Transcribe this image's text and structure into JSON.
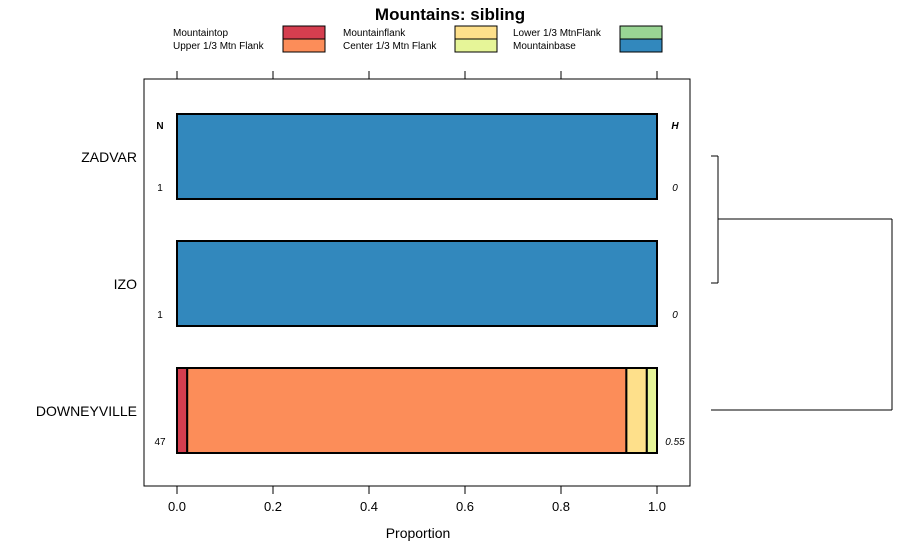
{
  "chart_data": {
    "type": "bar",
    "orientation": "horizontal",
    "stacked": true,
    "title": "Mountains: sibling",
    "xlabel": "Proportion",
    "ylabel": "",
    "xlim": [
      -0.07,
      1.07
    ],
    "x_ticks": [
      "0.0",
      "0.2",
      "0.4",
      "0.6",
      "0.8",
      "1.0"
    ],
    "x_tick_values": [
      0,
      0.2,
      0.4,
      0.6,
      0.8,
      1.0
    ],
    "categories": [
      "ZADVAR",
      "IZO",
      "DOWNEYVILLE"
    ],
    "n_header": "N",
    "h_header": "H",
    "n_values": [
      "1",
      "1",
      "47"
    ],
    "h_values": [
      "0",
      "0",
      "0.55"
    ],
    "legend_position": "top",
    "series": [
      {
        "name": "Mountaintop",
        "color": "#D53E4F",
        "values": [
          0,
          0,
          0.0213
        ]
      },
      {
        "name": "Upper 1/3 Mtn Flank",
        "color": "#FC8D59",
        "values": [
          0,
          0,
          0.9149
        ]
      },
      {
        "name": "Mountainflank",
        "color": "#FEE08B",
        "values": [
          0,
          0,
          0.0426
        ]
      },
      {
        "name": "Center 1/3 Mtn Flank",
        "color": "#E6F598",
        "values": [
          0,
          0,
          0.0212
        ]
      },
      {
        "name": "Lower 1/3 MtnFlank",
        "color": "#99D594",
        "values": [
          0,
          0,
          0
        ]
      },
      {
        "name": "Mountainbase",
        "color": "#3288BD",
        "values": [
          1,
          1,
          0
        ]
      }
    ],
    "dendrogram": {
      "merges": [
        [
          "ZADVAR",
          "IZO"
        ],
        [
          "ZADVAR+IZO",
          "DOWNEYVILLE"
        ]
      ]
    }
  }
}
